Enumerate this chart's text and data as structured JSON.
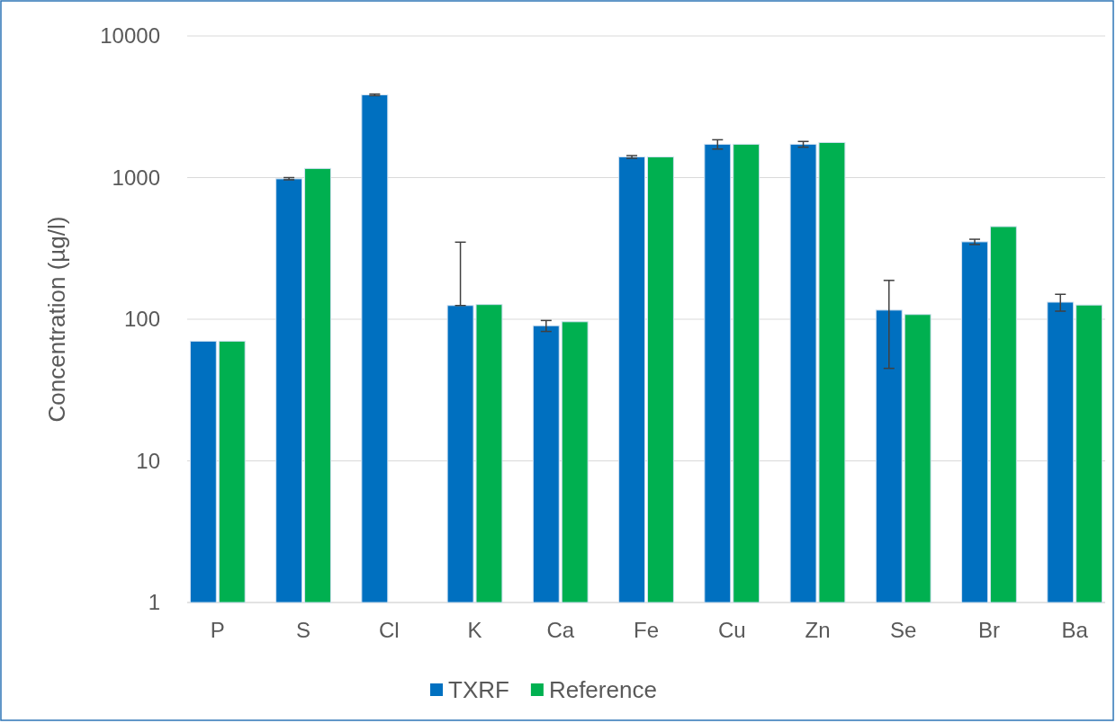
{
  "chart_data": {
    "type": "bar",
    "ylabel": "Concentration (µg/l)",
    "categories": [
      "P",
      "S",
      "Cl",
      "K",
      "Ca",
      "Fe",
      "Cu",
      "Zn",
      "Se",
      "Br",
      "Ba"
    ],
    "series": [
      {
        "name": "TXRF",
        "color": "#0070c0",
        "values": [
          70,
          980,
          3840,
          125,
          90,
          1400,
          1720,
          1720,
          116,
          352,
          132
        ],
        "errors": [
          null,
          [
            965,
            1000
          ],
          [
            3790,
            3890
          ],
          [
            125,
            350
          ],
          [
            82,
            98
          ],
          [
            1370,
            1430
          ],
          [
            1590,
            1850
          ],
          [
            1640,
            1800
          ],
          [
            45,
            188
          ],
          [
            337,
            367
          ],
          [
            114,
            150
          ]
        ]
      },
      {
        "name": "Reference",
        "color": "#00b050",
        "values": [
          70,
          1160,
          null,
          127,
          96,
          1400,
          1720,
          1770,
          108,
          451,
          126
        ]
      }
    ],
    "log": true,
    "ylim": [
      1,
      10000
    ],
    "yticks": [
      1,
      10,
      100,
      1000,
      10000
    ],
    "grid": "y",
    "legend": "bottom"
  }
}
